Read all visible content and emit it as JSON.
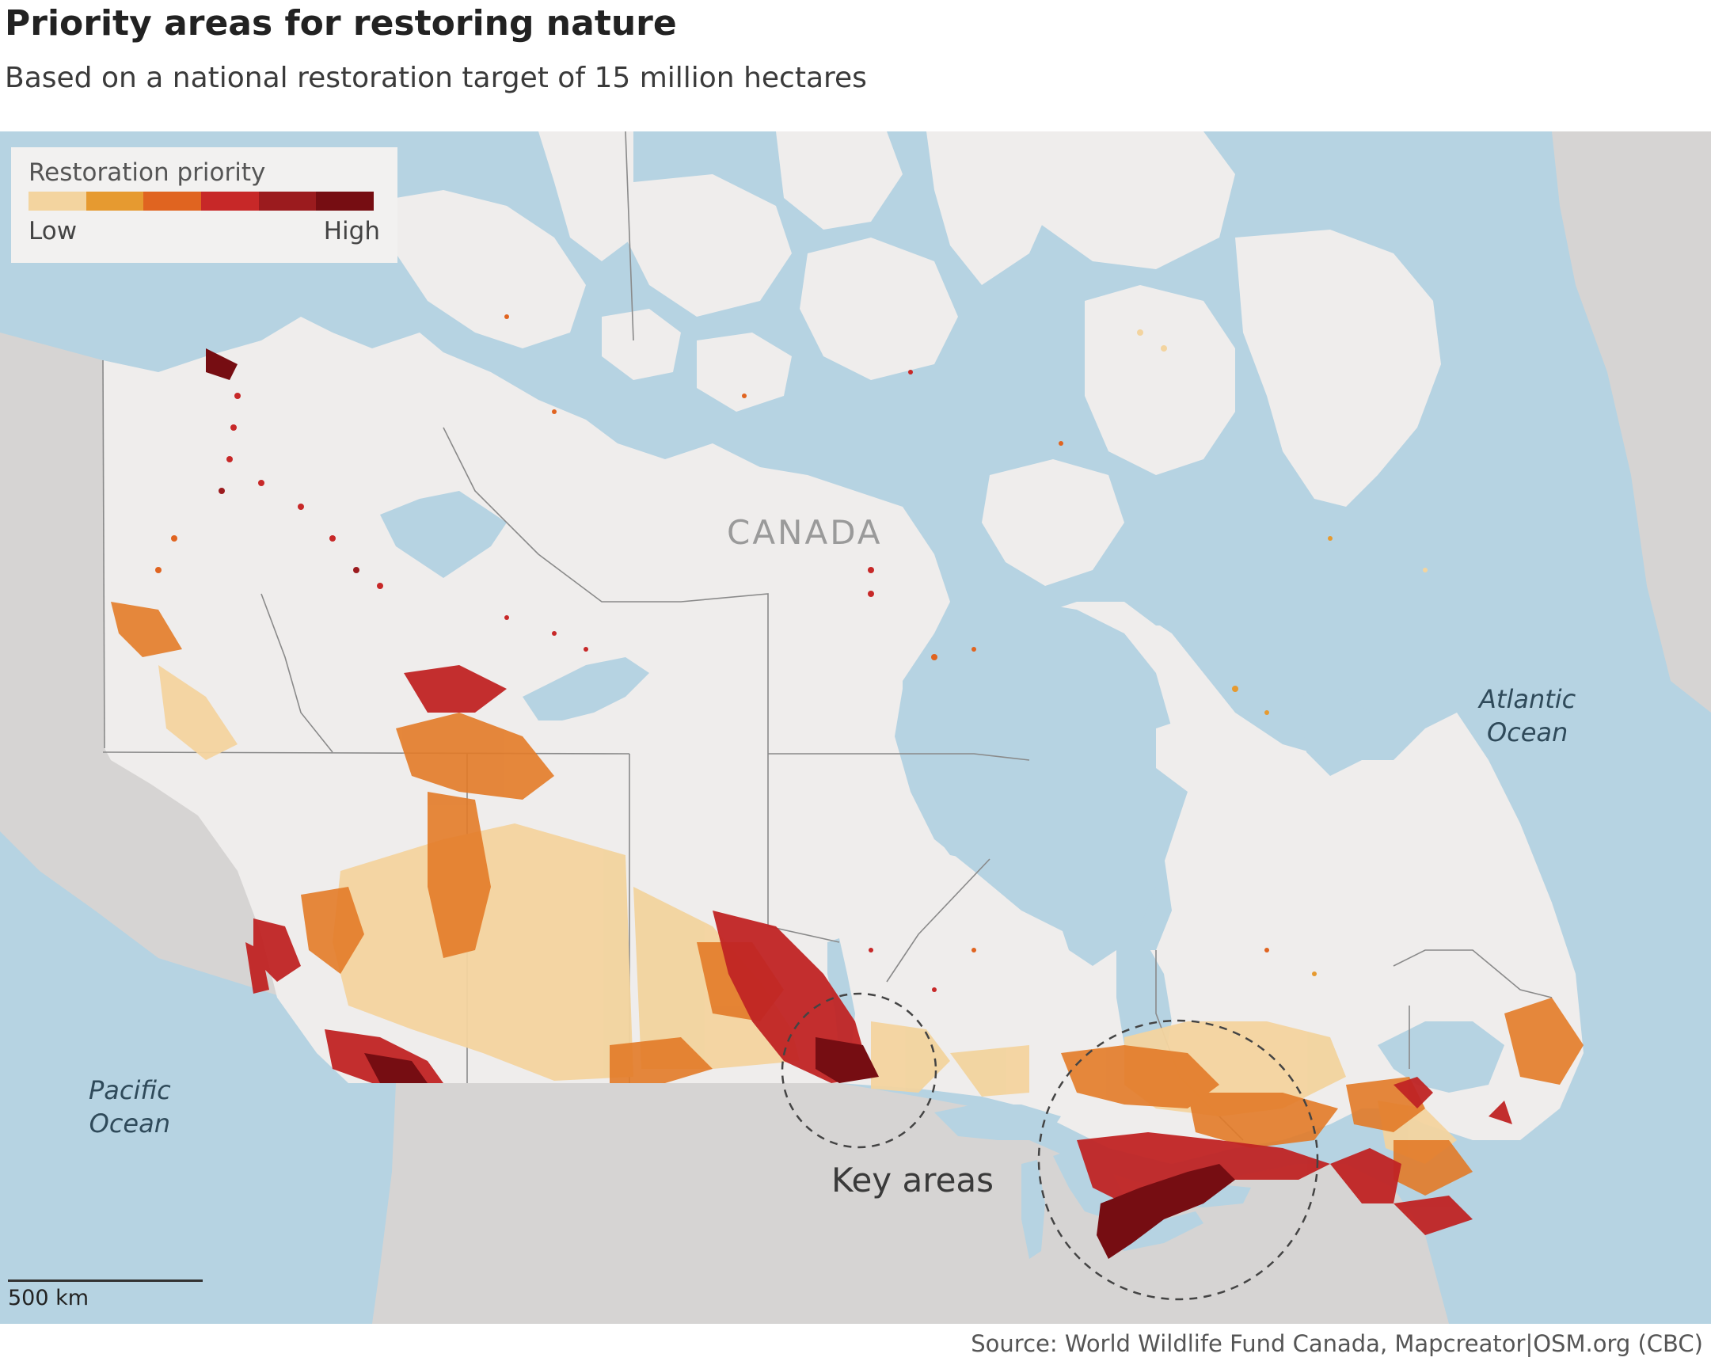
{
  "title": "Priority areas for restoring nature",
  "subtitle": "Based on a national restoration target of 15 million hectares",
  "legend": {
    "title": "Restoration priority",
    "low_label": "Low",
    "high_label": "High",
    "colors": [
      "#f3d49f",
      "#e69a30",
      "#e06420",
      "#c72828",
      "#9b1b1e",
      "#760d12"
    ]
  },
  "labels": {
    "country": "CANADA",
    "atlantic": [
      "Atlantic",
      "Ocean"
    ],
    "pacific": [
      "Pacific",
      "Ocean"
    ],
    "key_areas": "Key areas"
  },
  "scale_bar": {
    "label": "500 km"
  },
  "source": "Source: World Wildlife Fund Canada, Mapcreator|OSM.org (CBC)",
  "colors": {
    "water": "#b6d3e2",
    "land_canada": "#efedec",
    "land_other": "#d6d4d3",
    "borders": "#8a8a8a"
  }
}
